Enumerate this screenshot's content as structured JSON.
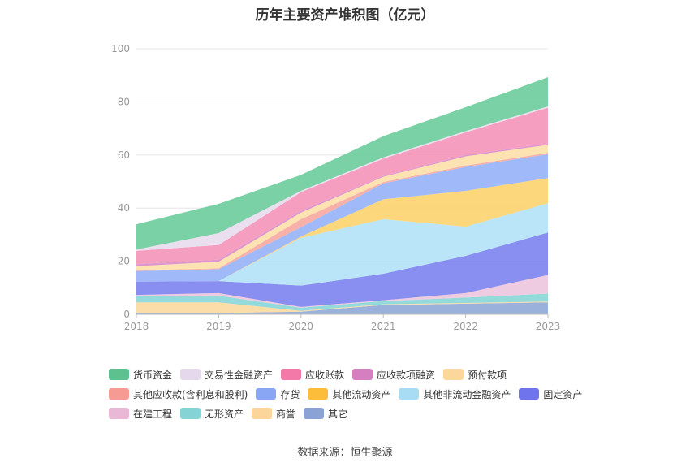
{
  "chart_data": {
    "type": "area",
    "title": "历年主要资产堆积图（亿元）",
    "xlabel": "",
    "ylabel": "",
    "categories": [
      "2018",
      "2019",
      "2020",
      "2021",
      "2022",
      "2023"
    ],
    "ylim": [
      0,
      100
    ],
    "yticks": [
      "0",
      "20",
      "40",
      "60",
      "80",
      "100"
    ],
    "stacked": true,
    "grid": true,
    "legend_position": "bottom",
    "series": [
      {
        "name": "其它",
        "color": "#8fa8d8",
        "values": [
          0.5,
          0.5,
          1.0,
          3.5,
          4.0,
          4.5
        ]
      },
      {
        "name": "商誉",
        "color": "#fbd9a0",
        "values": [
          4.0,
          4.0,
          0.3,
          0.3,
          0.3,
          0.3
        ]
      },
      {
        "name": "无形资产",
        "color": "#8ad6d6",
        "values": [
          2.5,
          2.5,
          1.2,
          1.2,
          2.0,
          3.0
        ]
      },
      {
        "name": "在建工程",
        "color": "#ecc5dd",
        "values": [
          0.3,
          1.0,
          0.3,
          0.3,
          1.7,
          7.0
        ]
      },
      {
        "name": "固定资产",
        "color": "#7b83ee",
        "values": [
          5.0,
          4.5,
          8.0,
          10.0,
          14.0,
          16.0
        ]
      },
      {
        "name": "其他非流动金融资产",
        "color": "#b3e2f7",
        "values": [
          0.0,
          0.0,
          18.0,
          20.5,
          11.0,
          11.0
        ]
      },
      {
        "name": "其他流动资产",
        "color": "#fdd36e",
        "values": [
          0.0,
          0.0,
          0.5,
          7.5,
          13.5,
          9.5
        ]
      },
      {
        "name": "存货",
        "color": "#96b1f7",
        "values": [
          4.0,
          4.5,
          3.5,
          6.0,
          9.0,
          9.0
        ]
      },
      {
        "name": "其他应收款(含利息和股利)",
        "color": "#f7a8a0",
        "values": [
          0.3,
          0.3,
          3.0,
          0.5,
          0.5,
          0.5
        ]
      },
      {
        "name": "预付款项",
        "color": "#fde0a8",
        "values": [
          1.5,
          2.5,
          2.5,
          2.0,
          3.5,
          3.0
        ]
      },
      {
        "name": "应收款项融资",
        "color": "#db8bc9",
        "values": [
          0.8,
          0.8,
          0.7,
          0.3,
          0.5,
          0.5
        ]
      },
      {
        "name": "应收账款",
        "color": "#f593b8",
        "values": [
          5.0,
          5.5,
          7.0,
          6.5,
          8.5,
          13.5
        ]
      },
      {
        "name": "交易性金融资产",
        "color": "#e7dcec",
        "values": [
          0.5,
          4.5,
          0.5,
          0.5,
          0.5,
          0.5
        ]
      },
      {
        "name": "货币资金",
        "color": "#6dcc9c",
        "values": [
          9.5,
          11.0,
          6.0,
          8.0,
          9.0,
          11.0
        ]
      }
    ]
  },
  "legend": {
    "rows": [
      [
        {
          "name": "货币资金",
          "color": "#5cc08f"
        },
        {
          "name": "交易性金融资产",
          "color": "#e5d8ec"
        },
        {
          "name": "应收账款",
          "color": "#f37aa8"
        },
        {
          "name": "应收款项融资",
          "color": "#d67fc0"
        },
        {
          "name": "预付款项",
          "color": "#fcd79b"
        }
      ],
      [
        {
          "name": "其他应收款(含利息和股利)",
          "color": "#f59b93"
        },
        {
          "name": "存货",
          "color": "#88a6f4"
        },
        {
          "name": "其他流动资产",
          "color": "#fbbd3a"
        },
        {
          "name": "其他非流动金融资产",
          "color": "#a8dcf5"
        },
        {
          "name": "固定资产",
          "color": "#6f74ec"
        }
      ],
      [
        {
          "name": "在建工程",
          "color": "#e9b8d6"
        },
        {
          "name": "无形资产",
          "color": "#86d3d6"
        },
        {
          "name": "商誉",
          "color": "#fbd59a"
        },
        {
          "name": "其它",
          "color": "#8aa3d4"
        }
      ]
    ]
  },
  "source": "数据来源：恒生聚源"
}
